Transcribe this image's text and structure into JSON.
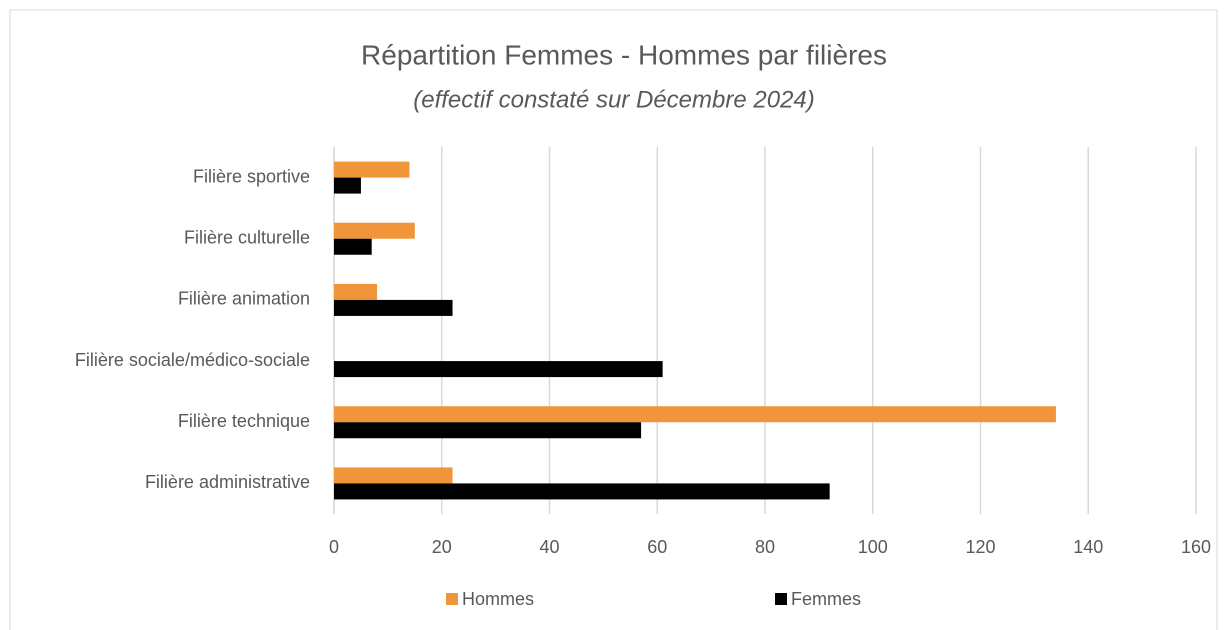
{
  "chart_data": {
    "type": "bar",
    "orientation": "horizontal",
    "title": "Répartition Femmes - Hommes par filières",
    "subtitle": "(effectif constaté sur Décembre 2024)",
    "categories": [
      "Filière administrative",
      "Filière technique",
      "Filière sociale/médico-sociale",
      "Filière animation",
      "Filière culturelle",
      "Filière sportive"
    ],
    "series": [
      {
        "name": "Hommes",
        "color": "#f0953a",
        "values": [
          22,
          134,
          0,
          8,
          15,
          14
        ]
      },
      {
        "name": "Femmes",
        "color": "#000000",
        "values": [
          92,
          57,
          61,
          22,
          7,
          5
        ]
      }
    ],
    "xlim": [
      0,
      160
    ],
    "xticks": [
      0,
      20,
      40,
      60,
      80,
      100,
      120,
      140,
      160
    ],
    "grid": true,
    "legend": "bottom"
  }
}
